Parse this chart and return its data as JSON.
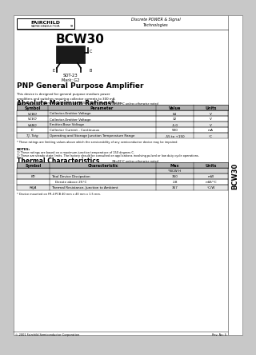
{
  "title": "BCW30",
  "subtitle": "PNP General Purpose Amplifier",
  "company": "FAIRCHILD",
  "company_sub": "SEMICONDUCTOR",
  "tagline": "Discrete POWER & Signal\nTechnologies",
  "side_label": "BCW30",
  "package": "SOT-23",
  "marking": "Mark: G2",
  "description": "This device is designed for general purpose medium power\namplifiers and switches requiring collector currents to 300 mA.\nGuaranteed hFE from Fairchild Inc. See BCW70A for characteristics.",
  "abs_max_title": "Absolute Maximum Ratings",
  "abs_max_note": "TA=25°C unless otherwise noted",
  "abs_max_headers": [
    "Symbol",
    "Parameter",
    "Value",
    "Units"
  ],
  "abs_max_rows": [
    [
      "VCBO",
      "Collector-Emitter Voltage",
      "64",
      "V"
    ],
    [
      "VCEO",
      "Collector-Emitter Voltage",
      "32",
      "V"
    ],
    [
      "VEBO",
      "Emitter-Base Voltage",
      "-5.0",
      "V"
    ],
    [
      "IC",
      "Collector Current - Continuous",
      "500",
      "mA"
    ],
    [
      "TJ, Tstg",
      "Operating and Storage Junction Temperature Range",
      "-55 to +150",
      "°C"
    ]
  ],
  "abs_max_footnote": "* These ratings are limiting values above which the serviceability of any semiconductor device may be impaired.",
  "notes_title": "NOTES:",
  "notes": [
    "1) These ratings are based on a maximum junction temperature of 150 degrees C.",
    "2) These are steady state limits. The factory should be consulted on applications involving pulsed or low duty cycle operations."
  ],
  "thermal_title": "Thermal Characteristics",
  "thermal_note": "TA=25°C unless otherwise noted",
  "thermal_headers": [
    "Symbol",
    "Characteristic",
    "Max",
    "Units"
  ],
  "thermal_subheader": "*BCW H",
  "thermal_rows_data": [
    [
      "PD",
      "Total Device Dissipation",
      "350",
      "mW"
    ],
    [
      "",
      "    Derate above 25°C",
      "2.8",
      "mW/°C"
    ],
    [
      "RθJA",
      "Thermal Resistance, Junction to Ambient",
      "357",
      "°C/W"
    ]
  ],
  "thermal_footnote": "* Device mounted on FR-4 PCB 40 mm x 40 mm x 1.5 mm.",
  "footer_left": "© 2001 Fairchild Semiconductor Corporation",
  "footer_right": "Rev. No: 5",
  "outer_bg": "#c8c8c8",
  "page_bg": "#ffffff",
  "tab_bg": "#ffffff"
}
